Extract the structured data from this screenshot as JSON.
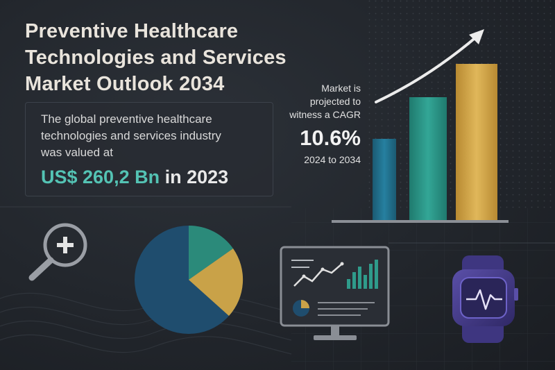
{
  "title": {
    "line1": "Preventive Healthcare",
    "line2": "Technologies and Services",
    "line3": "Market Outlook 2034"
  },
  "info": {
    "line1": "The global preventive healthcare",
    "line2": "technologies and services industry",
    "line3": "was valued at",
    "value": "US$ 260,2 Bn",
    "year_text": "in 2023"
  },
  "cagr": {
    "line1": "Market is",
    "line2": "projected to",
    "line3": "witness a CAGR",
    "value": "10.6%",
    "period": "2024 to 2034"
  },
  "colors": {
    "teal_dark": "#1e6e83",
    "teal": "#2f9b8b",
    "gold": "#d5a94c",
    "navy": "#1f4d6e",
    "purple": "#4a4090"
  },
  "icons": [
    "magnifier-plus-icon",
    "pie-chart-icon",
    "dashboard-monitor-icon",
    "smartwatch-heartbeat-icon",
    "trend-arrow-icon"
  ]
}
